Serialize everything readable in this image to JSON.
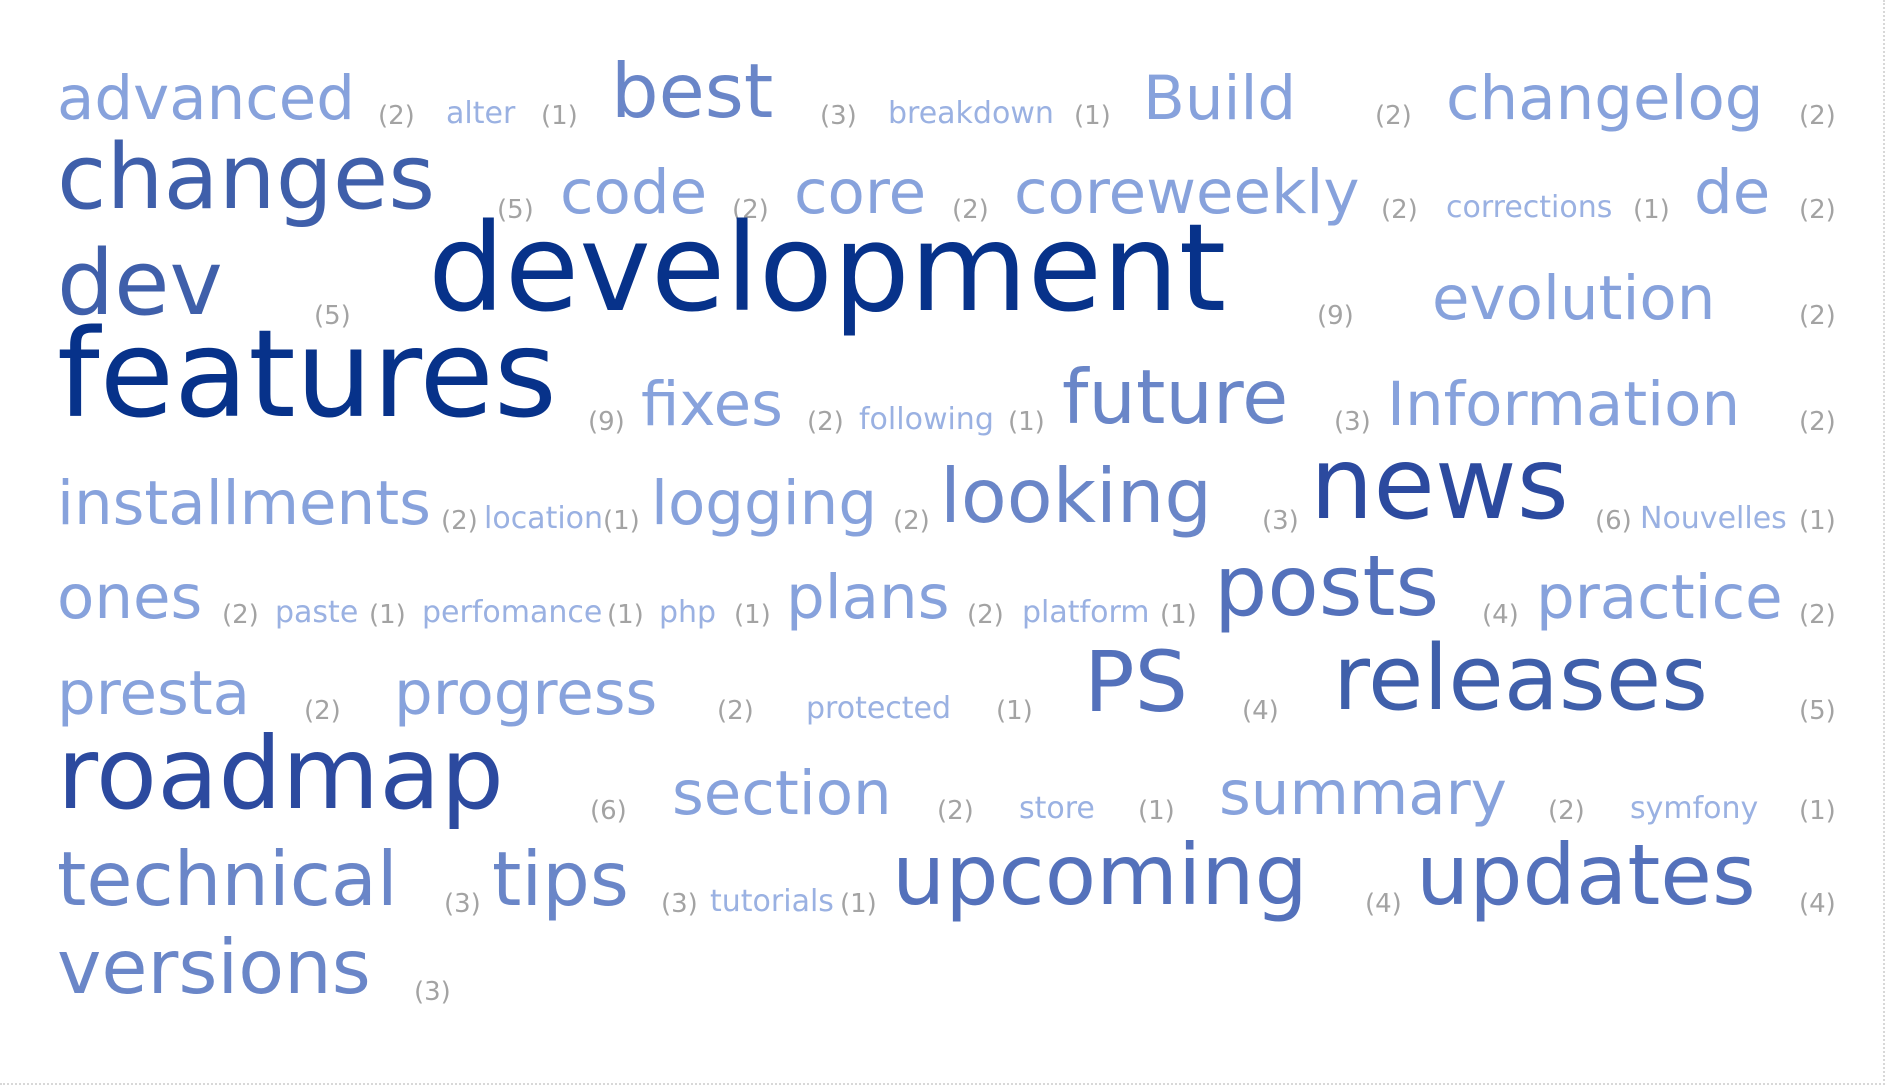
{
  "tag_cloud": {
    "colors": {
      "weight_1": "#9ab1e2",
      "weight_2": "#87a2dc",
      "weight_3": "#6a86c8",
      "weight_4": "#5471bb",
      "weight_5": "#3f5faa",
      "weight_6": "#2c4a9f",
      "weight_9": "#07328a",
      "count": "#a3a3a3"
    },
    "tags": [
      {
        "label": "advanced",
        "count": "(2)"
      },
      {
        "label": "alter",
        "count": "(1)"
      },
      {
        "label": "best",
        "count": "(3)"
      },
      {
        "label": "breakdown",
        "count": "(1)"
      },
      {
        "label": "Build",
        "count": "(2)"
      },
      {
        "label": "changelog",
        "count": "(2)"
      },
      {
        "label": "changes",
        "count": "(5)"
      },
      {
        "label": "code",
        "count": "(2)"
      },
      {
        "label": "core",
        "count": "(2)"
      },
      {
        "label": "coreweekly",
        "count": "(2)"
      },
      {
        "label": "corrections",
        "count": "(1)"
      },
      {
        "label": "de",
        "count": "(2)"
      },
      {
        "label": "dev",
        "count": "(5)"
      },
      {
        "label": "development",
        "count": "(9)"
      },
      {
        "label": "evolution",
        "count": "(2)"
      },
      {
        "label": "features",
        "count": "(9)"
      },
      {
        "label": "fixes",
        "count": "(2)"
      },
      {
        "label": "following",
        "count": "(1)"
      },
      {
        "label": "future",
        "count": "(3)"
      },
      {
        "label": "Information",
        "count": "(2)"
      },
      {
        "label": "installments",
        "count": "(2)"
      },
      {
        "label": "location",
        "count": "(1)"
      },
      {
        "label": "logging",
        "count": "(2)"
      },
      {
        "label": "looking",
        "count": "(3)"
      },
      {
        "label": "news",
        "count": "(6)"
      },
      {
        "label": "Nouvelles",
        "count": "(1)"
      },
      {
        "label": "ones",
        "count": "(2)"
      },
      {
        "label": "paste",
        "count": "(1)"
      },
      {
        "label": "perfomance",
        "count": "(1)"
      },
      {
        "label": "php",
        "count": "(1)"
      },
      {
        "label": "plans",
        "count": "(2)"
      },
      {
        "label": "platform",
        "count": "(1)"
      },
      {
        "label": "posts",
        "count": "(4)"
      },
      {
        "label": "practice",
        "count": "(2)"
      },
      {
        "label": "presta",
        "count": "(2)"
      },
      {
        "label": "progress",
        "count": "(2)"
      },
      {
        "label": "protected",
        "count": "(1)"
      },
      {
        "label": "PS",
        "count": "(4)"
      },
      {
        "label": "releases",
        "count": "(5)"
      },
      {
        "label": "roadmap",
        "count": "(6)"
      },
      {
        "label": "section",
        "count": "(2)"
      },
      {
        "label": "store",
        "count": "(1)"
      },
      {
        "label": "summary",
        "count": "(2)"
      },
      {
        "label": "symfony",
        "count": "(1)"
      },
      {
        "label": "technical",
        "count": "(3)"
      },
      {
        "label": "tips",
        "count": "(3)"
      },
      {
        "label": "tutorials",
        "count": "(1)"
      },
      {
        "label": "upcoming",
        "count": "(4)"
      },
      {
        "label": "updates",
        "count": "(4)"
      },
      {
        "label": "versions",
        "count": "(3)"
      }
    ]
  }
}
